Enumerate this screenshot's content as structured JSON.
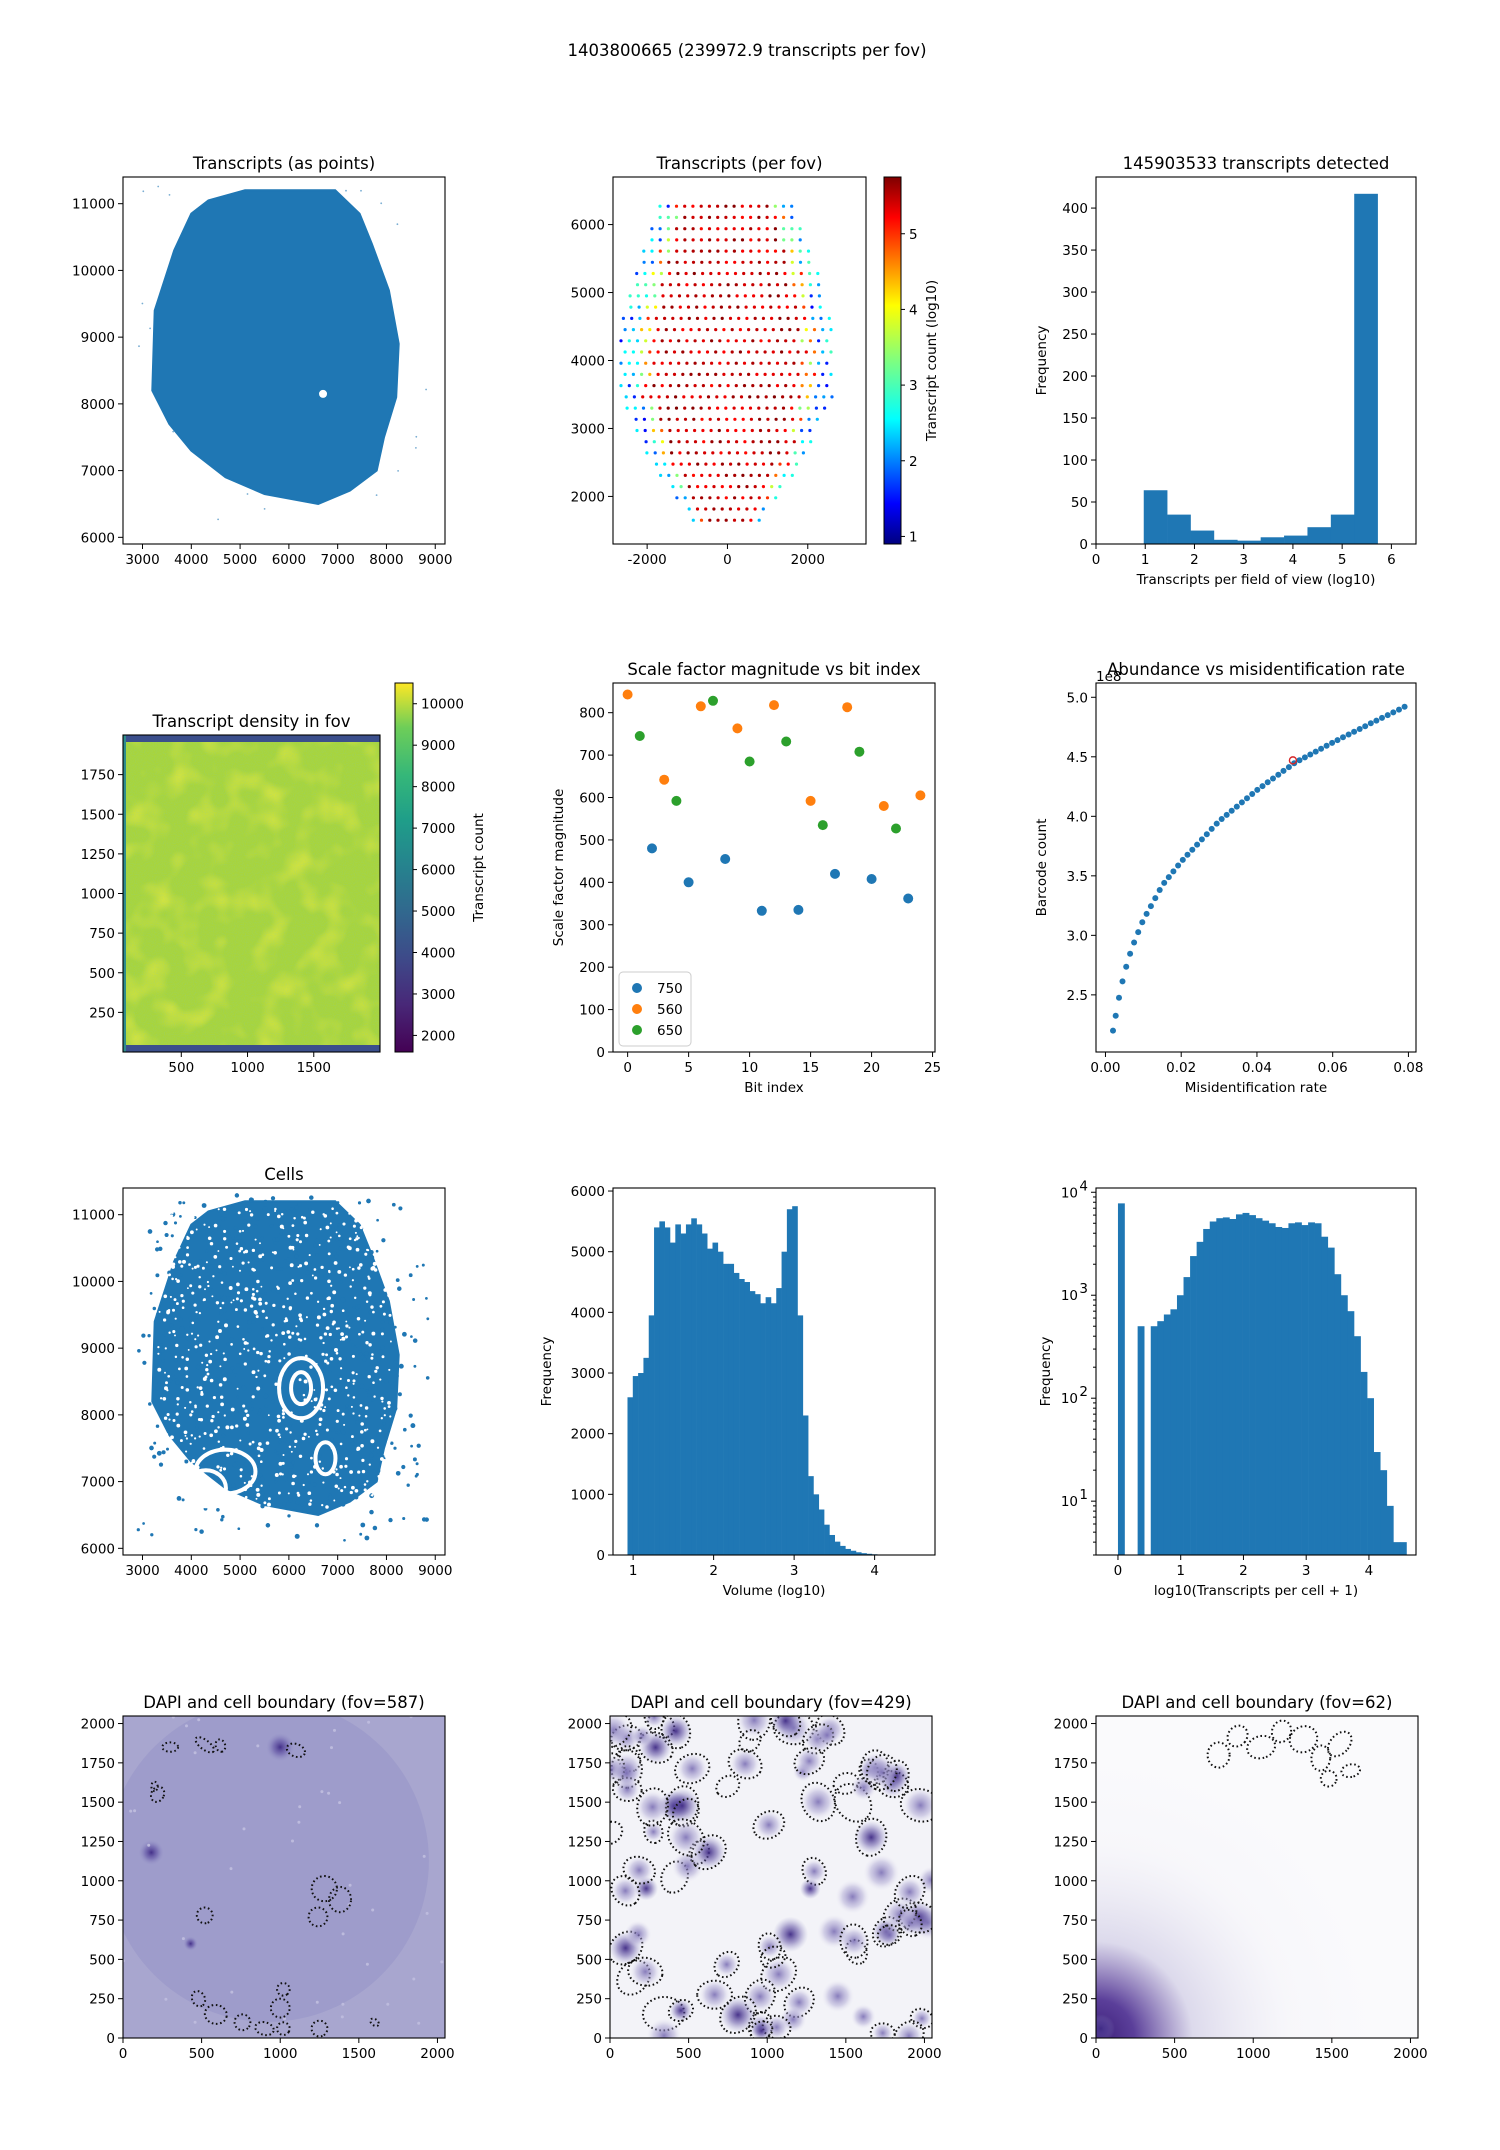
{
  "suptitle": "1403800665 (239972.9 transcripts per fov)",
  "colors": {
    "blue": "#1f77b4",
    "orange": "#ff7f0e",
    "green": "#2ca02c",
    "red": "#d62728"
  },
  "chart_data": [
    {
      "id": "p1",
      "type": "scatter",
      "title": "Transcripts (as points)",
      "xlabel": "",
      "ylabel": "",
      "xlim": [
        2600,
        9200
      ],
      "ylim": [
        5900,
        11400
      ],
      "xticks": [
        3000,
        4000,
        5000,
        6000,
        7000,
        8000,
        9000
      ],
      "yticks": [
        6000,
        7000,
        8000,
        9000,
        10000,
        11000
      ],
      "shape": "dense transcript point cloud, tissue section",
      "outline_x": [
        5100,
        6950,
        7450,
        7700,
        8050,
        8250,
        8200,
        7950,
        7800,
        7250,
        6600,
        5500,
        4700,
        4000,
        3550,
        3200,
        3250,
        3650,
        4000,
        4350
      ],
      "outline_y": [
        11200,
        11200,
        10850,
        10400,
        9700,
        8900,
        8100,
        7500,
        7000,
        6700,
        6500,
        6650,
        6900,
        7300,
        7700,
        8200,
        9400,
        10300,
        10850,
        11050
      ]
    },
    {
      "id": "p2",
      "type": "scatter",
      "title": "Transcripts (per fov)",
      "xlabel": "",
      "ylabel": "",
      "xlim": [
        -2850,
        3450
      ],
      "ylim": [
        1300,
        6700
      ],
      "xticks": [
        -2000,
        0,
        2000
      ],
      "yticks": [
        2000,
        3000,
        4000,
        5000,
        6000
      ],
      "colorbar": {
        "label": "Transcript count (log10)",
        "range": [
          0.9,
          5.75
        ],
        "ticks": [
          1,
          2,
          3,
          4,
          5
        ],
        "cmap": "jet"
      },
      "grid": {
        "row_y_start": 1650,
        "row_y_step": 165,
        "rows": 29,
        "x_step": 205,
        "profile_y": [
          1650,
          2500,
          3500,
          4500,
          5500,
          6400
        ],
        "profile_halfwidth": [
          850,
          1900,
          2650,
          2650,
          2150,
          1600
        ]
      }
    },
    {
      "id": "p3",
      "type": "bar",
      "title": "145903533 transcripts detected",
      "xlabel": "Transcripts per field of view (log10)",
      "ylabel": "Frequency",
      "xlim": [
        0,
        6.5
      ],
      "ylim": [
        0,
        437
      ],
      "xticks": [
        0,
        1,
        2,
        3,
        4,
        5,
        6
      ],
      "yticks": [
        0,
        50,
        100,
        150,
        200,
        250,
        300,
        350,
        400
      ],
      "bin_start": 0.97,
      "bin_width": 0.475,
      "values": [
        64,
        35,
        16,
        5,
        4,
        8,
        10,
        20,
        35,
        417
      ]
    },
    {
      "id": "p4",
      "type": "heatmap",
      "title": "Transcript density in fov",
      "xlabel": "",
      "ylabel": "",
      "xlim": [
        60,
        2000
      ],
      "ylim": [
        0,
        2000
      ],
      "xticks": [
        500,
        1000,
        1500
      ],
      "yticks": [
        250,
        500,
        750,
        1000,
        1250,
        1500,
        1750
      ],
      "colorbar": {
        "label": "Transcript count",
        "range": [
          1600,
          10500
        ],
        "ticks": [
          2000,
          3000,
          4000,
          5000,
          6000,
          7000,
          8000,
          9000,
          10000
        ],
        "cmap": "viridis"
      },
      "typical_value": 8400,
      "edge_value": 2500
    },
    {
      "id": "p5",
      "type": "scatter",
      "title": "Scale factor magnitude vs bit index",
      "xlabel": "Bit index",
      "ylabel": "Scale factor magnitude",
      "xlim": [
        -1.2,
        25.2
      ],
      "ylim": [
        0,
        870
      ],
      "xticks": [
        0,
        5,
        10,
        15,
        20,
        25
      ],
      "yticks": [
        0,
        100,
        200,
        300,
        400,
        500,
        600,
        700,
        800
      ],
      "legend": "lower left",
      "series": [
        {
          "name": "750",
          "color": "#1f77b4",
          "x": [
            2,
            5,
            8,
            11,
            14,
            17,
            20,
            23
          ],
          "y": [
            480,
            400,
            455,
            333,
            335,
            420,
            408,
            362
          ]
        },
        {
          "name": "560",
          "color": "#ff7f0e",
          "x": [
            0,
            3,
            6,
            9,
            12,
            15,
            18,
            21,
            24
          ],
          "y": [
            843,
            642,
            815,
            763,
            818,
            592,
            813,
            580,
            605
          ]
        },
        {
          "name": "650",
          "color": "#2ca02c",
          "x": [
            1,
            4,
            7,
            10,
            13,
            16,
            19,
            22
          ],
          "y": [
            745,
            592,
            828,
            685,
            732,
            535,
            708,
            527
          ]
        }
      ]
    },
    {
      "id": "p6",
      "type": "scatter",
      "title": "Abundance vs misidentification rate",
      "xlabel": "Misidentification rate",
      "ylabel": "Barcode count",
      "xlim": [
        -0.0025,
        0.082
      ],
      "ylim": [
        2.02,
        5.12
      ],
      "xticks": [
        0.0,
        0.02,
        0.04,
        0.06,
        0.08
      ],
      "xticklabels": [
        "0.00",
        "0.02",
        "0.04",
        "0.06",
        "0.08"
      ],
      "yticks": [
        2.5,
        3.0,
        3.5,
        4.0,
        4.5,
        5.0
      ],
      "yticklabels": [
        "2.5",
        "3.0",
        "3.5",
        "4.0",
        "4.5",
        "5.0"
      ],
      "offset_text": "1e8",
      "curve_x": [
        0.002,
        0.004,
        0.006,
        0.008,
        0.01,
        0.015,
        0.02,
        0.03,
        0.04,
        0.05,
        0.06,
        0.07,
        0.079
      ],
      "curve_y": [
        2.2,
        2.55,
        2.8,
        2.98,
        3.13,
        3.42,
        3.62,
        3.96,
        4.22,
        4.45,
        4.62,
        4.78,
        4.92
      ],
      "n_points": 60,
      "highlight": {
        "x": 0.0495,
        "y": 4.47,
        "color": "#d62728"
      }
    },
    {
      "id": "p7",
      "type": "scatter",
      "title": "Cells",
      "xlabel": "",
      "ylabel": "",
      "xlim": [
        2600,
        9200
      ],
      "ylim": [
        5900,
        11400
      ],
      "xticks": [
        3000,
        4000,
        5000,
        6000,
        7000,
        8000,
        9000
      ],
      "yticks": [
        6000,
        7000,
        8000,
        9000,
        10000,
        11000
      ],
      "shape": "cell centroid scatter with holes",
      "outline_x": [
        5100,
        6950,
        7450,
        7700,
        8050,
        8250,
        8200,
        7950,
        7800,
        7250,
        6600,
        5500,
        4700,
        4000,
        3550,
        3200,
        3250,
        3650,
        4000,
        4350
      ],
      "outline_y": [
        11200,
        11200,
        10850,
        10400,
        9700,
        8900,
        8100,
        7500,
        7000,
        6700,
        6500,
        6650,
        6900,
        7300,
        7700,
        8200,
        9400,
        10300,
        10850,
        11050
      ]
    },
    {
      "id": "p8",
      "type": "bar",
      "title": "",
      "xlabel": "Volume (log10)",
      "ylabel": "Frequency",
      "xlim": [
        0.75,
        4.75
      ],
      "ylim": [
        0,
        6050
      ],
      "xticks": [
        1,
        2,
        3,
        4
      ],
      "yticks": [
        0,
        1000,
        2000,
        3000,
        4000,
        5000,
        6000
      ],
      "bin_start": 0.93,
      "bin_width": 0.066,
      "values": [
        2600,
        2950,
        3000,
        3250,
        3950,
        5400,
        5500,
        5400,
        5150,
        5450,
        5300,
        5450,
        5550,
        5450,
        5300,
        5050,
        5150,
        5000,
        4800,
        4800,
        4650,
        4550,
        4500,
        4350,
        4300,
        4150,
        4250,
        4150,
        4400,
        5000,
        5700,
        5750,
        3950,
        2300,
        1300,
        1000,
        750,
        500,
        330,
        220,
        150,
        100,
        70,
        45,
        30,
        20,
        12,
        8
      ]
    },
    {
      "id": "p9",
      "type": "bar",
      "title": "",
      "xlabel": "log10(Transcripts per cell + 1)",
      "ylabel": "Frequency",
      "yscale": "log",
      "xlim": [
        -0.35,
        4.75
      ],
      "ylim": [
        3,
        11000
      ],
      "xticks": [
        0,
        1,
        2,
        3,
        4
      ],
      "yticks": [
        10,
        100,
        1000,
        10000
      ],
      "yticklabels": [
        "10",
        "10",
        "10",
        "10"
      ],
      "ytickexp": [
        "1",
        "2",
        "3",
        "4"
      ],
      "bin_start": 0,
      "bin_width": 0.1045,
      "values": [
        7800,
        0,
        0,
        500,
        0,
        500,
        560,
        650,
        730,
        1000,
        1500,
        2400,
        3300,
        4400,
        5200,
        5600,
        5700,
        5500,
        6100,
        6300,
        6000,
        5600,
        5300,
        5000,
        4600,
        4500,
        5000,
        5100,
        4800,
        5100,
        5000,
        3700,
        2900,
        1600,
        1000,
        700,
        400,
        180,
        100,
        30,
        20,
        9,
        4,
        4
      ]
    },
    {
      "id": "p10",
      "type": "heatmap",
      "title": "DAPI and cell boundary (fov=587)",
      "xlim": [
        0,
        2048
      ],
      "ylim": [
        0,
        2048
      ],
      "xticks": [
        0,
        500,
        1000,
        1500,
        2000
      ],
      "yticks": [
        0,
        250,
        500,
        750,
        1000,
        1250,
        1500,
        1750,
        2000
      ],
      "background": "#a8a6cf",
      "blob_x": [
        430,
        180,
        1000
      ],
      "blob_y": [
        600,
        1180,
        1850
      ],
      "blob_r": [
        45,
        80,
        90
      ],
      "cell_x": [
        300,
        520,
        620,
        1100,
        1280,
        1380,
        1240,
        520,
        220,
        480,
        590,
        760,
        1000,
        1020,
        1250,
        900,
        1020,
        200,
        1600
      ],
      "cell_y": [
        1850,
        1865,
        1860,
        1830,
        950,
        880,
        770,
        780,
        1550,
        250,
        150,
        100,
        190,
        60,
        60,
        60,
        310,
        1600,
        100
      ],
      "cell_rx": [
        50,
        70,
        40,
        60,
        80,
        70,
        60,
        50,
        40,
        50,
        70,
        50,
        60,
        40,
        50,
        60,
        40,
        30,
        30
      ],
      "cell_ry": [
        30,
        30,
        30,
        40,
        80,
        80,
        60,
        50,
        50,
        40,
        60,
        50,
        60,
        40,
        50,
        40,
        40,
        20,
        20
      ]
    },
    {
      "id": "p11",
      "type": "heatmap",
      "title": "DAPI and cell boundary (fov=429)",
      "xlim": [
        0,
        2048
      ],
      "ylim": [
        0,
        2048
      ],
      "xticks": [
        0,
        500,
        1000,
        1500,
        2000
      ],
      "yticks": [
        0,
        250,
        500,
        750,
        1000,
        1250,
        1500,
        1750,
        2000
      ],
      "background": "#f3f3f8",
      "n_cells": 95,
      "seed": 429
    },
    {
      "id": "p12",
      "type": "heatmap",
      "title": "DAPI and cell boundary (fov=62)",
      "xlim": [
        0,
        2048
      ],
      "ylim": [
        0,
        2048
      ],
      "xticks": [
        0,
        500,
        1000,
        1500,
        2000
      ],
      "yticks": [
        0,
        250,
        500,
        750,
        1000,
        1250,
        1500,
        1750,
        2000
      ],
      "background": "#fafafc",
      "blob_x": [
        30
      ],
      "blob_y": [
        60
      ],
      "blob_r": [
        90
      ],
      "cell_x": [
        780,
        900,
        1050,
        1180,
        1320,
        1430,
        1550,
        1620,
        1480
      ],
      "cell_y": [
        1800,
        1920,
        1850,
        1950,
        1900,
        1780,
        1870,
        1700,
        1650
      ],
      "cell_rx": [
        70,
        60,
        70,
        60,
        80,
        60,
        60,
        40,
        50
      ],
      "cell_ry": [
        80,
        70,
        90,
        70,
        90,
        80,
        90,
        60,
        50
      ]
    }
  ]
}
